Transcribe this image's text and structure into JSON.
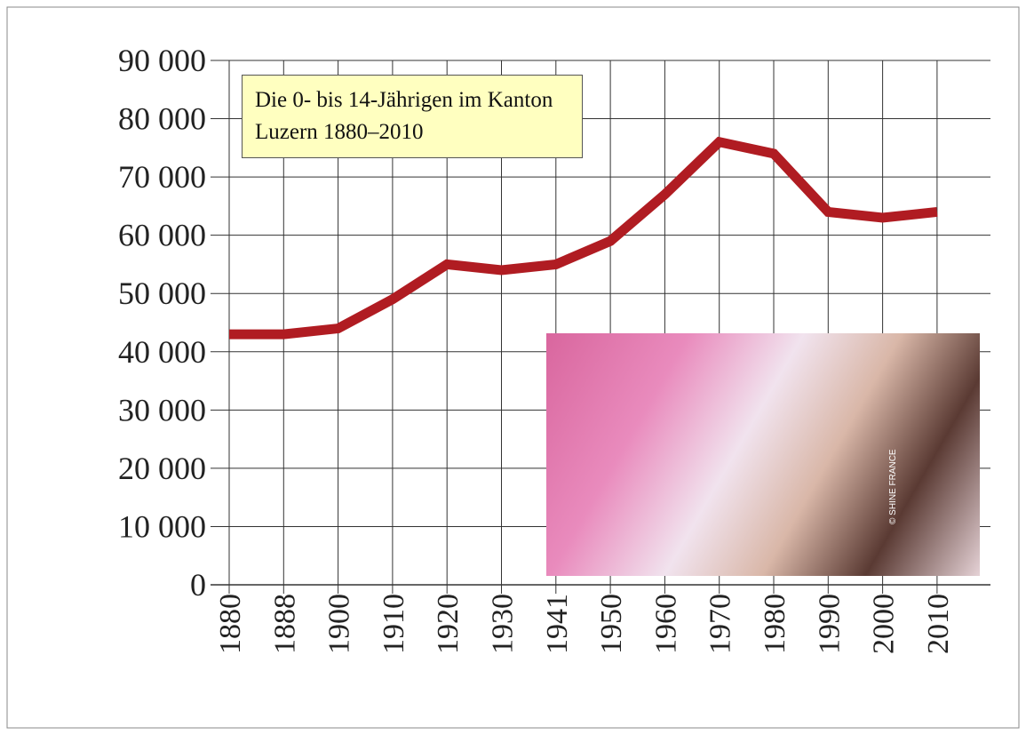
{
  "chart_data": {
    "type": "line",
    "title": "Die 0- bis 14-Jährigen im Kanton Luzern 1880–2010",
    "photo_credit": "© SHINE FRANCE",
    "categories": [
      "1880",
      "1888",
      "1900",
      "1910",
      "1920",
      "1930",
      "1941",
      "1950",
      "1960",
      "1970",
      "1980",
      "1990",
      "2000",
      "2010"
    ],
    "series": [
      {
        "color": "#b01c22",
        "values": [
          43000,
          43000,
          44000,
          49000,
          55000,
          54000,
          55000,
          59000,
          67000,
          76000,
          74000,
          64000,
          63000,
          64000
        ]
      }
    ],
    "ylim": [
      0,
      90000
    ],
    "yticks": [
      0,
      {
        "value": 10000,
        "label": "10 000"
      },
      {
        "value": 20000,
        "label": "20 000"
      },
      {
        "value": 30000,
        "label": "30 000"
      },
      {
        "value": 40000,
        "label": "40 000"
      },
      {
        "value": 50000,
        "label": "50 000"
      },
      {
        "value": 60000,
        "label": "60 000"
      },
      {
        "value": 70000,
        "label": "70 000"
      },
      {
        "value": 80000,
        "label": "80 000"
      },
      {
        "value": 90000,
        "label": "90 000"
      }
    ],
    "grid": true
  }
}
